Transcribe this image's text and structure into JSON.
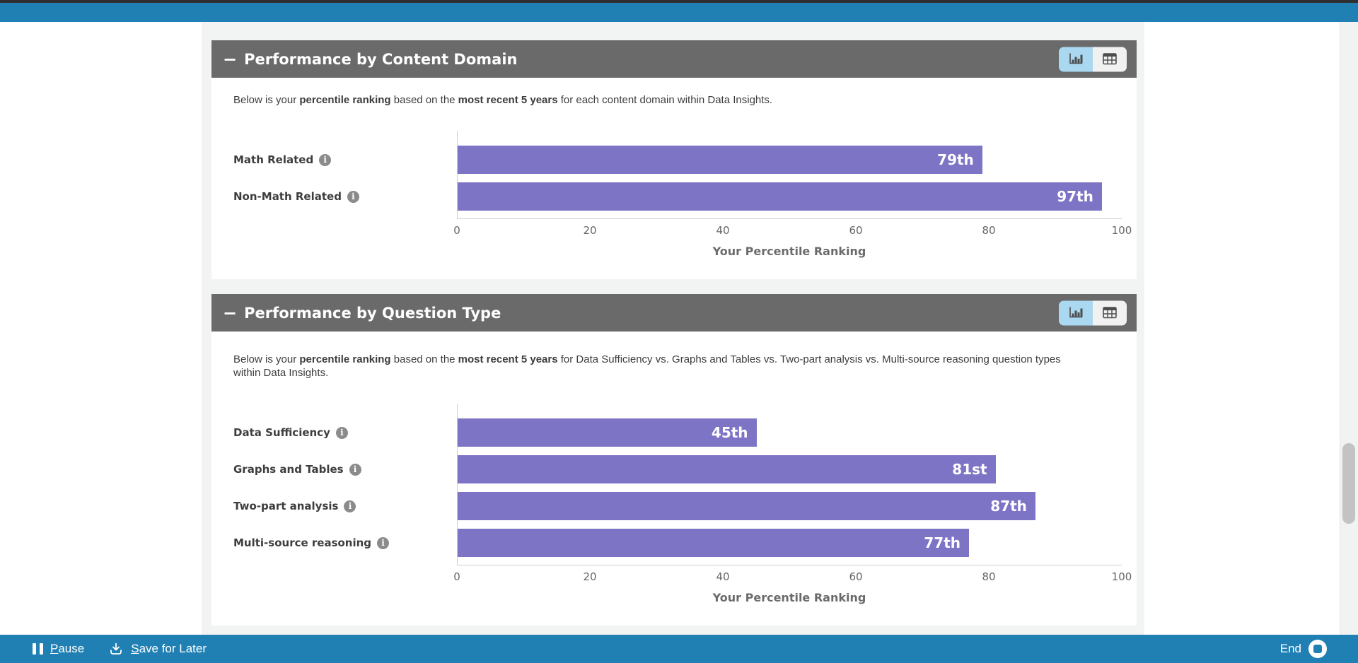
{
  "colors": {
    "accent_blue": "#2180b3",
    "bar_purple": "#7e74c6",
    "panel_header_gray": "#6a6a6a",
    "active_toggle_blue": "#a9d8f0"
  },
  "panels": [
    {
      "collapse_glyph": "−",
      "title": "Performance by Content Domain",
      "view_toggle": {
        "active_view": "chart",
        "chart_icon": "bar-chart-icon",
        "table_icon": "table-icon"
      },
      "description": {
        "s1": "Below is your ",
        "b1": "percentile ranking",
        "s2": " based on the ",
        "b2": "most recent 5 years",
        "s3": " for each content domain within Data Insights."
      },
      "chart_data": {
        "type": "bar",
        "orientation": "horizontal",
        "categories": [
          "Math Related",
          "Non-Math Related"
        ],
        "values": [
          79,
          97
        ],
        "value_labels": [
          "79th",
          "97th"
        ],
        "xlabel": "Your Percentile Ranking",
        "xlim": [
          0,
          100
        ],
        "ticks": [
          0,
          20,
          40,
          60,
          80,
          100
        ],
        "bar_color": "#7e74c6",
        "grid": false,
        "info_icon_per_category": true
      }
    },
    {
      "collapse_glyph": "−",
      "title": "Performance by Question Type",
      "view_toggle": {
        "active_view": "chart",
        "chart_icon": "bar-chart-icon",
        "table_icon": "table-icon"
      },
      "description": {
        "s1": "Below is your ",
        "b1": "percentile ranking",
        "s2": " based on the ",
        "b2": "most recent 5 years",
        "s3": " for Data Sufficiency vs. Graphs and Tables vs. Two-part analysis vs. Multi-source reasoning question types within Data Insights."
      },
      "chart_data": {
        "type": "bar",
        "orientation": "horizontal",
        "categories": [
          "Data Sufficiency",
          "Graphs and Tables",
          "Two-part analysis",
          "Multi-source reasoning"
        ],
        "values": [
          45,
          81,
          87,
          77
        ],
        "value_labels": [
          "45th",
          "81st",
          "87th",
          "77th"
        ],
        "xlabel": "Your Percentile Ranking",
        "xlim": [
          0,
          100
        ],
        "ticks": [
          0,
          20,
          40,
          60,
          80,
          100
        ],
        "bar_color": "#7e74c6",
        "grid": false,
        "info_icon_per_category": true
      }
    }
  ],
  "bottom_bar": {
    "pause": {
      "key": "P",
      "rest": "ause",
      "icon": "pause-icon"
    },
    "save": {
      "key": "S",
      "rest": "ave for Later",
      "icon": "download-icon"
    },
    "end": {
      "label": "End",
      "icon": "stop-record-icon"
    }
  }
}
